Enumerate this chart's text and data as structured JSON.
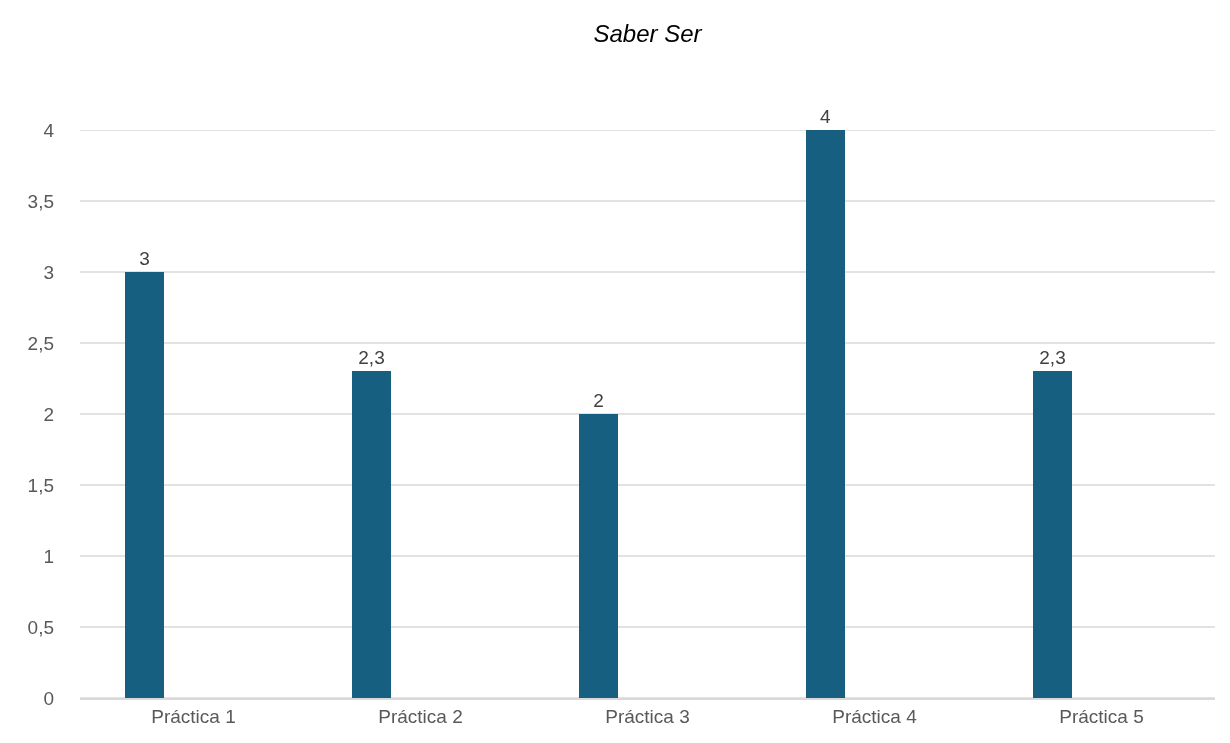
{
  "chart_data": {
    "type": "bar",
    "title": "Saber Ser",
    "categories": [
      "Práctica 1",
      "Práctica 2",
      "Práctica 3",
      "Práctica 4",
      "Práctica 5"
    ],
    "values": [
      3,
      2.3,
      2,
      4,
      2.3
    ],
    "value_labels": [
      "3",
      "2,3",
      "2",
      "4",
      "2,3"
    ],
    "color": "#175f80",
    "ylim": [
      0,
      4
    ],
    "yticks": [
      0,
      {
        "value": 0.5,
        "label": "0,5"
      },
      1,
      {
        "value": 1.5,
        "label": "1,5"
      },
      2,
      {
        "value": 2.5,
        "label": "2,5"
      },
      3,
      {
        "value": 3.5,
        "label": "3,5"
      },
      4
    ],
    "grid": "y"
  }
}
